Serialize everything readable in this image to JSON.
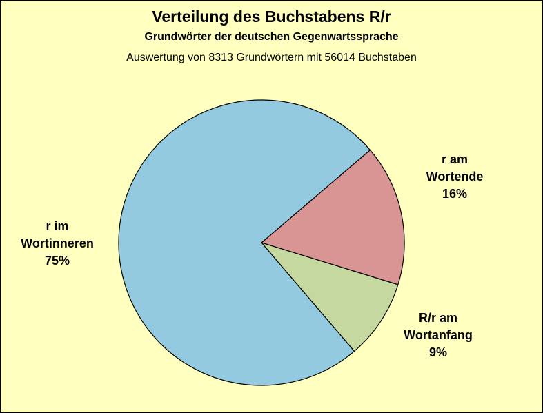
{
  "chart_data": {
    "type": "pie",
    "title": "Verteilung des Buchstabens R/r",
    "subtitle": "Grundwörter der deutschen Gegenwartssprache",
    "note": "Auswertung von 8313 Grundwörtern mit 56014 Buchstaben",
    "slices": [
      {
        "label_lines": [
          "r im",
          "Wortinneren"
        ],
        "percent_label": "75%",
        "value": 75,
        "color": "#94cadf"
      },
      {
        "label_lines": [
          "R/r am",
          "Wortanfang"
        ],
        "percent_label": "9%",
        "value": 9,
        "color": "#c5d8a0"
      },
      {
        "label_lines": [
          "r am",
          "Wortende"
        ],
        "percent_label": "16%",
        "value": 16,
        "color": "#d99594"
      }
    ]
  },
  "colors": {
    "background": "#ffffc0",
    "stroke": "#000000"
  }
}
